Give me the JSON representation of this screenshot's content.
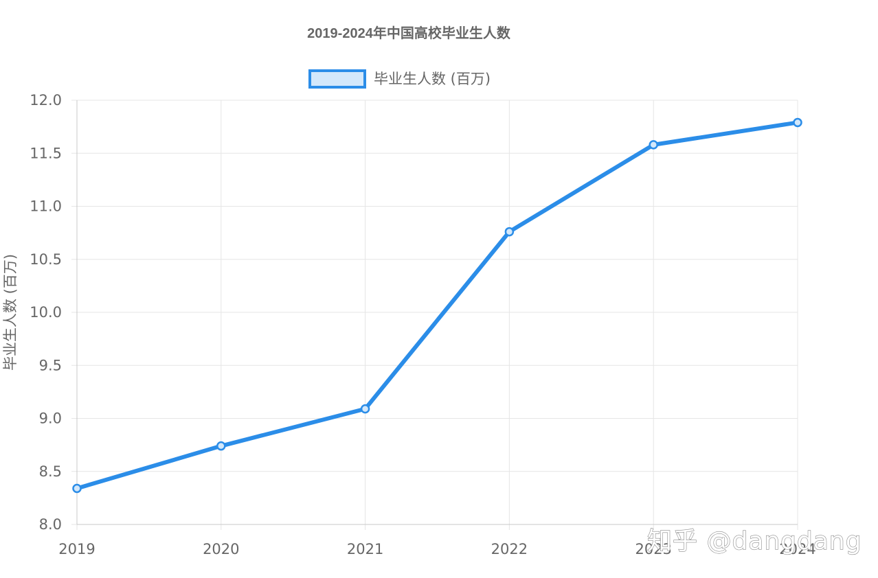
{
  "chart_data": {
    "type": "line",
    "title": "2019-2024年中国高校毕业生人数",
    "ylabel": "毕业生人数 (百万)",
    "xlabel": "",
    "categories": [
      "2019",
      "2020",
      "2021",
      "2022",
      "2023",
      "2024"
    ],
    "series": [
      {
        "name": "毕业生人数 (百万)",
        "values": [
          8.34,
          8.74,
          9.09,
          10.76,
          11.58,
          11.79
        ]
      }
    ],
    "ylim": [
      8.0,
      12.0
    ],
    "yticks": [
      "8.0",
      "8.5",
      "9.0",
      "9.5",
      "10.0",
      "10.5",
      "11.0",
      "11.5",
      "12.0"
    ],
    "grid": true,
    "legend_position": "top",
    "colors": {
      "line": "#2b8de8",
      "point_fill": "#d3e8fb",
      "legend_fill": "#d3e8fb"
    }
  },
  "watermark": {
    "text": "知乎 @dangdang"
  }
}
